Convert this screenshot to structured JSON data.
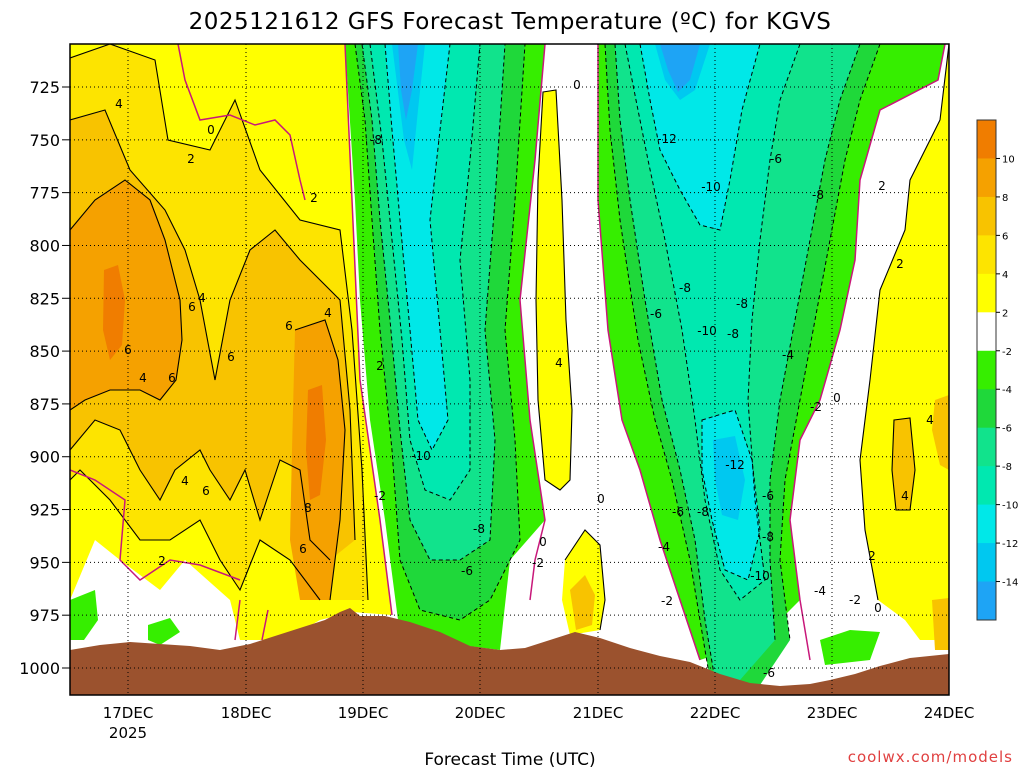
{
  "chart_data": {
    "type": "heatmap",
    "title": "2025121612 GFS Forecast Temperature (ºC) for KGVS",
    "xlabel": "Forecast Time (UTC)",
    "ylabel": "",
    "x_ticks": [
      "17DEC",
      "18DEC",
      "19DEC",
      "20DEC",
      "21DEC",
      "22DEC",
      "23DEC",
      "24DEC"
    ],
    "x_tick_year": "2025",
    "xlim_days": [
      16.5,
      24.0
    ],
    "y_ticks": [
      "725",
      "750",
      "775",
      "800",
      "825",
      "850",
      "875",
      "900",
      "925",
      "950",
      "975",
      "1000"
    ],
    "ylim_hpa": [
      700,
      1010
    ],
    "colorbar_levels": [
      "10",
      "8",
      "6",
      "4",
      "2",
      "-2",
      "-4",
      "-6",
      "-8",
      "-10",
      "-12",
      "-14"
    ],
    "colorbar_colors": [
      "#f07d00",
      "#f5a100",
      "#f8c300",
      "#fde400",
      "#ffff00",
      "#ffffff",
      "#36ee00",
      "#1fd83a",
      "#11e38c",
      "#00e8b0",
      "#00e8e8",
      "#00c8f0",
      "#1ea4f5"
    ],
    "terrain_color": "#9b522e",
    "freezing_line_color": "#c8187a",
    "contour_labels": [
      "4",
      "0",
      "2",
      "2",
      "6",
      "4",
      "6",
      "4",
      "6",
      "4",
      "6",
      "6",
      "4",
      "6",
      "8",
      "6",
      "2",
      "2",
      "-8",
      "-2",
      "-10",
      "-8",
      "-6",
      "-2",
      "0",
      "0",
      "4",
      "0",
      "-12",
      "-10",
      "-8",
      "-6",
      "-10",
      "-8",
      "-6",
      "-8",
      "-4",
      "-2",
      "2",
      "0",
      "2",
      "-4",
      "-2",
      "-6",
      "-8",
      "-12",
      "-6",
      "-8",
      "-10",
      "-4",
      "-2",
      "0",
      "2",
      "4",
      "4",
      "-6",
      "-8"
    ],
    "credit": "coolwx.com/models"
  }
}
